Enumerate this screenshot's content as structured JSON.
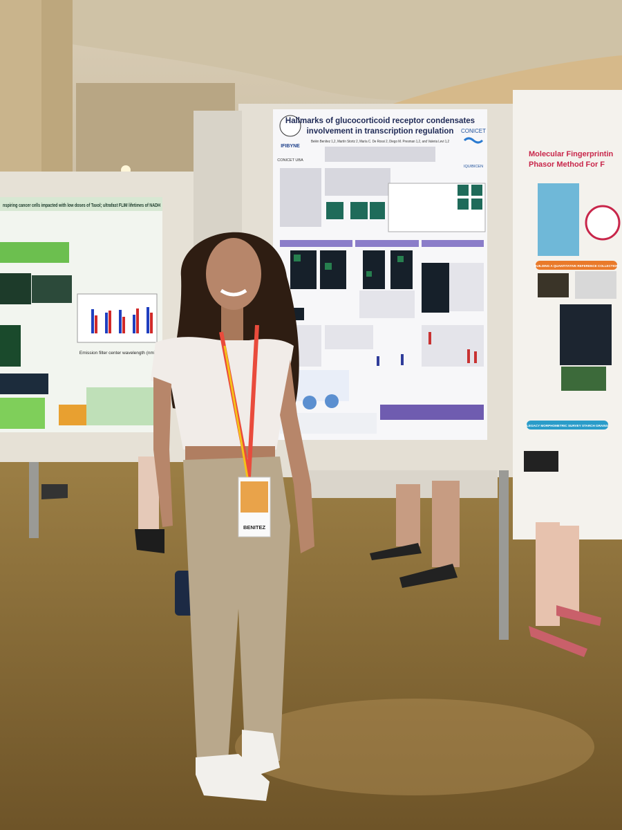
{
  "scene": {
    "center_poster": {
      "title_line1": "Hallmarks of glucocorticoid receptor condensates",
      "title_line2": "involvement in transcription regulation",
      "authors": "Belén Benítez 1,2, Martín Stortz 2, María C. De Rossi 2, Diego M. Presman 1,2, and Valeria Levi 1,2",
      "logo_left": "IFIBYNE",
      "logo_left_sub": "CONICET UBA",
      "logo_right": "CONICET",
      "logo_right2": "IQUIBICEN"
    },
    "left_poster": {
      "title": "nspiring cancer cells impacted with low doses of Taxol; ultrafast FLIM lifetimes of NADH",
      "axis_label": "Emission filter center wavelength (nm)"
    },
    "right_poster": {
      "title_line1": "Molecular Fingerprintin",
      "title_line2": "Phasor Method For F",
      "section1": "BUILDING A QUANTITATIVE REFERENCE COLLECTION",
      "section2": "LEGACY MORPHOMETRIC SURVEY STARCH GRAINS"
    },
    "badge": {
      "name": "BENITEZ"
    }
  }
}
